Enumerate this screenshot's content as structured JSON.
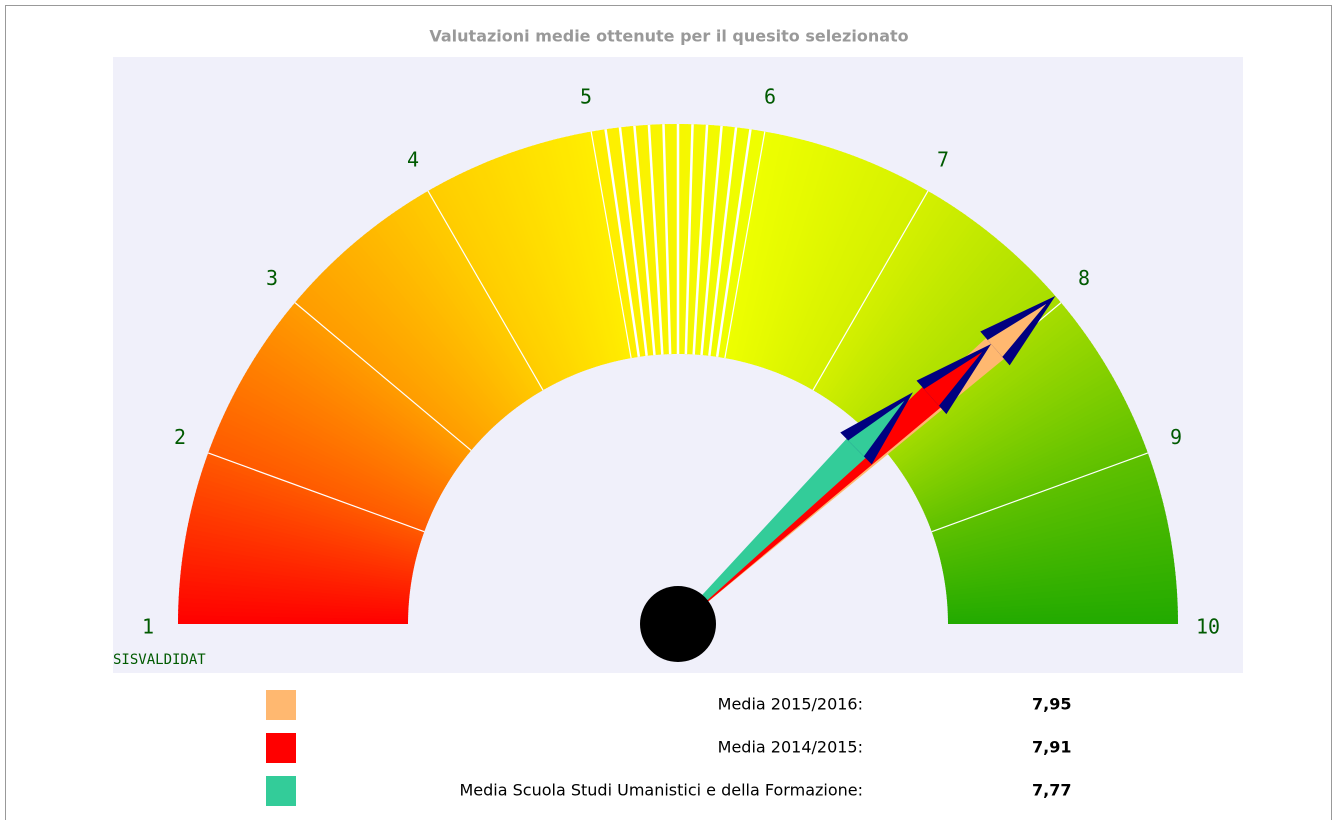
{
  "chart_data": {
    "type": "gauge",
    "title": "Valutazioni medie ottenute per il quesito selezionato",
    "source": "SISVALDIDAT",
    "ylim": [
      1,
      10
    ],
    "yticks": [
      1,
      2,
      3,
      4,
      5,
      6,
      7,
      8,
      9,
      10
    ],
    "band_colors": [
      "#ff0000",
      "#ff5a00",
      "#ff9c00",
      "#ffcc00",
      "#ffee00",
      "#eeff00",
      "#d4f000",
      "#a6dd00",
      "#5ec000",
      "#22aa00"
    ],
    "needle_head_color": "#000080",
    "series": [
      {
        "name": "Media 2015/2016:",
        "color": "#ffb870",
        "values": [
          7.95
        ],
        "value_labels": [
          "7,95"
        ]
      },
      {
        "name": "Media 2014/2015:",
        "color": "#ff0000",
        "values": [
          7.91
        ],
        "value_labels": [
          "7,91"
        ]
      },
      {
        "name": "Media Scuola Studi Umanistici e della Formazione:",
        "color": "#33cc99",
        "values": [
          7.77
        ],
        "value_labels": [
          "7,77"
        ]
      }
    ]
  }
}
